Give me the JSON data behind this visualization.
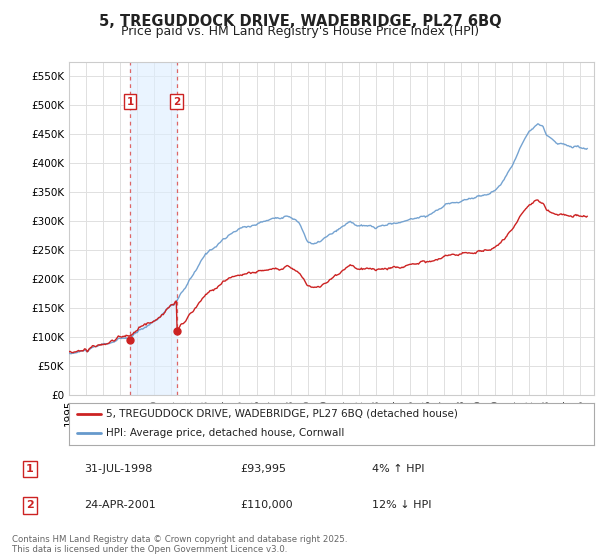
{
  "title": "5, TREGUDDOCK DRIVE, WADEBRIDGE, PL27 6BQ",
  "subtitle": "Price paid vs. HM Land Registry's House Price Index (HPI)",
  "ylim": [
    0,
    575000
  ],
  "yticks": [
    0,
    50000,
    100000,
    150000,
    200000,
    250000,
    300000,
    350000,
    400000,
    450000,
    500000,
    550000
  ],
  "ytick_labels": [
    "£0",
    "£50K",
    "£100K",
    "£150K",
    "£200K",
    "£250K",
    "£300K",
    "£350K",
    "£400K",
    "£450K",
    "£500K",
    "£550K"
  ],
  "xlim_start": 1995.0,
  "xlim_end": 2025.8,
  "background_color": "#ffffff",
  "plot_bg_color": "#ffffff",
  "grid_color": "#e0e0e0",
  "line1_color": "#cc2222",
  "line2_color": "#6699cc",
  "dash_color": "#dd8888",
  "shade_color": "#ddeeff",
  "transaction1_date": 1998.58,
  "transaction1_price": 93995,
  "transaction2_date": 2001.32,
  "transaction2_price": 110000,
  "legend1_text": "5, TREGUDDOCK DRIVE, WADEBRIDGE, PL27 6BQ (detached house)",
  "legend2_text": "HPI: Average price, detached house, Cornwall",
  "table_rows": [
    {
      "num": "1",
      "date": "31-JUL-1998",
      "price": "£93,995",
      "change": "4% ↑ HPI"
    },
    {
      "num": "2",
      "date": "24-APR-2001",
      "price": "£110,000",
      "change": "12% ↓ HPI"
    }
  ],
  "footnote": "Contains HM Land Registry data © Crown copyright and database right 2025.\nThis data is licensed under the Open Government Licence v3.0.",
  "title_fontsize": 10.5,
  "subtitle_fontsize": 9,
  "tick_fontsize": 7.5
}
